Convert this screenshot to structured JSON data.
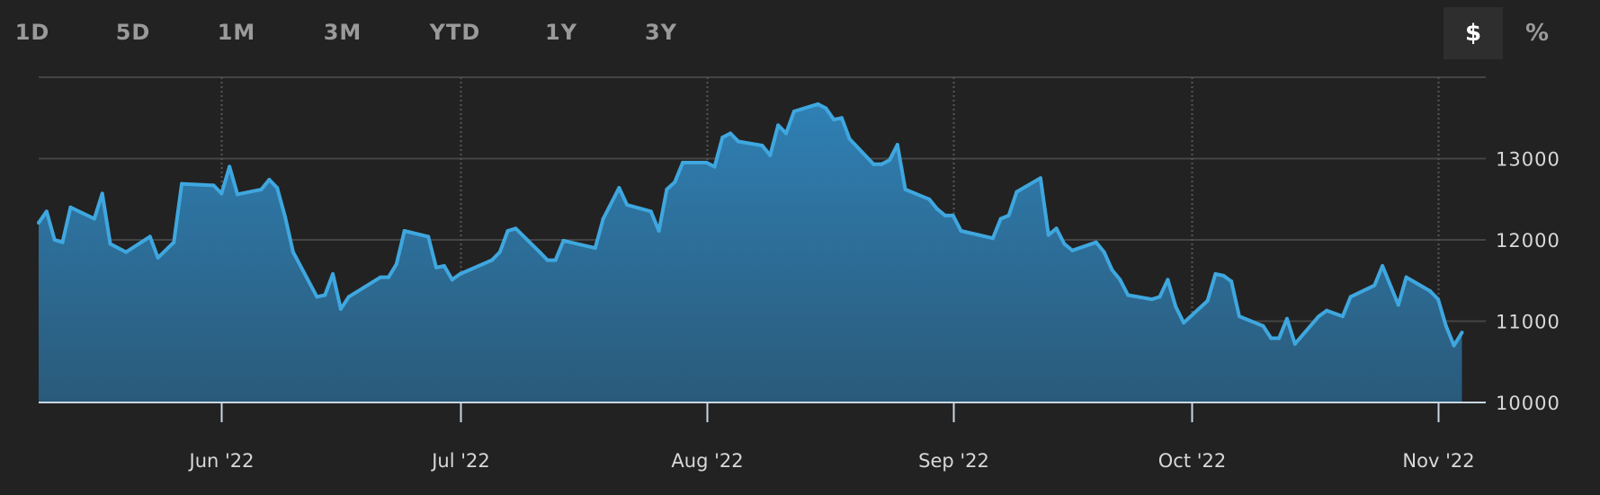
{
  "range_buttons": [
    "1D",
    "5D",
    "1M",
    "3M",
    "YTD",
    "1Y",
    "3Y"
  ],
  "unit_toggle": {
    "options": [
      "$",
      "%"
    ],
    "selected": "$"
  },
  "colors": {
    "background": "#222222",
    "line": "#3fa7df",
    "fill_top": "#2f80b4",
    "fill_bottom": "#2a5a7a",
    "grid": "#444444",
    "axis": "#c9d6e2"
  },
  "chart_data": {
    "type": "area",
    "title": "",
    "xlabel": "",
    "ylabel": "",
    "grid": true,
    "xlim": [
      "2022-05-09",
      "2022-11-07"
    ],
    "ylim": [
      10000,
      14000
    ],
    "y_ticks": [
      10000,
      11000,
      12000,
      13000,
      14000
    ],
    "y_tick_labels": [
      "10000",
      "11000",
      "12000",
      "13000",
      ""
    ],
    "x_ticks": [
      "2022-06-01",
      "2022-07-01",
      "2022-08-01",
      "2022-09-01",
      "2022-10-01",
      "2022-11-01"
    ],
    "x_tick_labels": [
      "Jun '22",
      "Jul '22",
      "Aug '22",
      "Sep '22",
      "Oct '22",
      "Nov '22"
    ],
    "points": [
      [
        "2022-05-09",
        12210
      ],
      [
        "2022-05-10",
        12350
      ],
      [
        "2022-05-11",
        12000
      ],
      [
        "2022-05-12",
        11970
      ],
      [
        "2022-05-13",
        12400
      ],
      [
        "2022-05-16",
        12260
      ],
      [
        "2022-05-17",
        12570
      ],
      [
        "2022-05-18",
        11950
      ],
      [
        "2022-05-20",
        11850
      ],
      [
        "2022-05-23",
        12040
      ],
      [
        "2022-05-24",
        11780
      ],
      [
        "2022-05-26",
        11970
      ],
      [
        "2022-05-27",
        12690
      ],
      [
        "2022-05-31",
        12670
      ],
      [
        "2022-06-01",
        12570
      ],
      [
        "2022-06-02",
        12900
      ],
      [
        "2022-06-03",
        12560
      ],
      [
        "2022-06-06",
        12620
      ],
      [
        "2022-06-07",
        12740
      ],
      [
        "2022-06-08",
        12640
      ],
      [
        "2022-06-09",
        12280
      ],
      [
        "2022-06-10",
        11850
      ],
      [
        "2022-06-13",
        11300
      ],
      [
        "2022-06-14",
        11320
      ],
      [
        "2022-06-15",
        11580
      ],
      [
        "2022-06-16",
        11150
      ],
      [
        "2022-06-17",
        11300
      ],
      [
        "2022-06-21",
        11540
      ],
      [
        "2022-06-22",
        11540
      ],
      [
        "2022-06-23",
        11700
      ],
      [
        "2022-06-24",
        12110
      ],
      [
        "2022-06-27",
        12040
      ],
      [
        "2022-06-28",
        11660
      ],
      [
        "2022-06-29",
        11680
      ],
      [
        "2022-06-30",
        11510
      ],
      [
        "2022-07-01",
        11580
      ],
      [
        "2022-07-05",
        11750
      ],
      [
        "2022-07-06",
        11850
      ],
      [
        "2022-07-07",
        12110
      ],
      [
        "2022-07-08",
        12140
      ],
      [
        "2022-07-11",
        11850
      ],
      [
        "2022-07-12",
        11750
      ],
      [
        "2022-07-13",
        11750
      ],
      [
        "2022-07-14",
        11990
      ],
      [
        "2022-07-18",
        11900
      ],
      [
        "2022-07-19",
        12260
      ],
      [
        "2022-07-21",
        12640
      ],
      [
        "2022-07-22",
        12430
      ],
      [
        "2022-07-25",
        12350
      ],
      [
        "2022-07-26",
        12110
      ],
      [
        "2022-07-27",
        12620
      ],
      [
        "2022-07-28",
        12710
      ],
      [
        "2022-07-29",
        12950
      ],
      [
        "2022-08-01",
        12950
      ],
      [
        "2022-08-02",
        12900
      ],
      [
        "2022-08-03",
        13260
      ],
      [
        "2022-08-04",
        13310
      ],
      [
        "2022-08-05",
        13210
      ],
      [
        "2022-08-08",
        13160
      ],
      [
        "2022-08-09",
        13040
      ],
      [
        "2022-08-10",
        13410
      ],
      [
        "2022-08-11",
        13310
      ],
      [
        "2022-08-12",
        13580
      ],
      [
        "2022-08-15",
        13670
      ],
      [
        "2022-08-16",
        13620
      ],
      [
        "2022-08-17",
        13480
      ],
      [
        "2022-08-18",
        13500
      ],
      [
        "2022-08-19",
        13240
      ],
      [
        "2022-08-22",
        12930
      ],
      [
        "2022-08-23",
        12930
      ],
      [
        "2022-08-24",
        12980
      ],
      [
        "2022-08-25",
        13170
      ],
      [
        "2022-08-26",
        12620
      ],
      [
        "2022-08-29",
        12500
      ],
      [
        "2022-08-30",
        12380
      ],
      [
        "2022-08-31",
        12300
      ],
      [
        "2022-09-01",
        12300
      ],
      [
        "2022-09-02",
        12110
      ],
      [
        "2022-09-06",
        12020
      ],
      [
        "2022-09-07",
        12260
      ],
      [
        "2022-09-08",
        12300
      ],
      [
        "2022-09-09",
        12590
      ],
      [
        "2022-09-12",
        12760
      ],
      [
        "2022-09-13",
        12060
      ],
      [
        "2022-09-14",
        12140
      ],
      [
        "2022-09-15",
        11950
      ],
      [
        "2022-09-16",
        11870
      ],
      [
        "2022-09-19",
        11970
      ],
      [
        "2022-09-20",
        11850
      ],
      [
        "2022-09-21",
        11630
      ],
      [
        "2022-09-22",
        11510
      ],
      [
        "2022-09-23",
        11320
      ],
      [
        "2022-09-26",
        11270
      ],
      [
        "2022-09-27",
        11300
      ],
      [
        "2022-09-28",
        11510
      ],
      [
        "2022-09-29",
        11180
      ],
      [
        "2022-09-30",
        10980
      ],
      [
        "2022-10-03",
        11250
      ],
      [
        "2022-10-04",
        11580
      ],
      [
        "2022-10-05",
        11560
      ],
      [
        "2022-10-06",
        11490
      ],
      [
        "2022-10-07",
        11060
      ],
      [
        "2022-10-10",
        10940
      ],
      [
        "2022-10-11",
        10790
      ],
      [
        "2022-10-12",
        10790
      ],
      [
        "2022-10-13",
        11030
      ],
      [
        "2022-10-14",
        10720
      ],
      [
        "2022-10-17",
        11060
      ],
      [
        "2022-10-18",
        11130
      ],
      [
        "2022-10-20",
        11060
      ],
      [
        "2022-10-21",
        11300
      ],
      [
        "2022-10-24",
        11440
      ],
      [
        "2022-10-25",
        11680
      ],
      [
        "2022-10-27",
        11200
      ],
      [
        "2022-10-28",
        11540
      ],
      [
        "2022-10-31",
        11370
      ],
      [
        "2022-11-01",
        11270
      ],
      [
        "2022-11-02",
        10940
      ],
      [
        "2022-11-03",
        10700
      ],
      [
        "2022-11-04",
        10860
      ]
    ]
  }
}
